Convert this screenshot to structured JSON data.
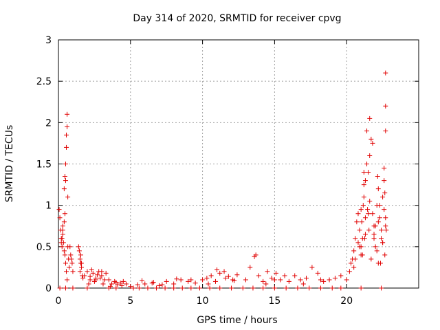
{
  "chart_data": {
    "type": "scatter",
    "title": "Day 314 of 2020, SRMTID for receiver cpvg",
    "xlabel": "GPS time / hours",
    "ylabel": "SRMTID / TECUs",
    "xlim": [
      0,
      25
    ],
    "ylim": [
      0,
      3
    ],
    "xticks": [
      "0",
      "5",
      "10",
      "15",
      "20"
    ],
    "yticks": [
      "0",
      "0.5",
      "1",
      "1.5",
      "2",
      "2.5",
      "3"
    ],
    "xtick_values": [
      0,
      5,
      10,
      15,
      20
    ],
    "ytick_values": [
      0,
      0.5,
      1,
      1.5,
      2,
      2.5,
      3
    ],
    "grid": true,
    "marker": "+",
    "series": [
      {
        "name": "SRMTID",
        "color": "#e00000",
        "x": [
          0.05,
          0.1,
          0.15,
          0.2,
          0.25,
          0.3,
          0.35,
          0.4,
          0.45,
          0.5,
          0.55,
          0.6,
          0.65,
          0.7,
          0.75,
          0.8,
          0.85,
          0.9,
          0.95,
          1.0,
          0.3,
          0.4,
          0.45,
          0.5,
          0.55,
          0.55,
          0.6,
          0.6,
          0.65,
          0.5,
          0.45,
          0.4,
          0.3,
          0.25,
          0.2,
          1.4,
          1.45,
          1.5,
          1.55,
          1.6,
          1.65,
          1.7,
          1.5,
          1.55,
          1.6,
          1.8,
          2.0,
          2.2,
          2.4,
          2.6,
          2.8,
          3.0,
          3.2,
          2.1,
          2.3,
          2.5,
          2.7,
          2.9,
          3.1,
          3.3,
          2.2,
          2.6,
          3.0,
          3.5,
          3.7,
          3.9,
          4.1,
          4.3,
          4.5,
          4.7,
          3.6,
          4.0,
          4.4,
          5.0,
          5.5,
          6.0,
          6.5,
          7.0,
          7.5,
          8.0,
          8.5,
          9.0,
          9.5,
          5.8,
          6.6,
          7.2,
          8.2,
          9.2,
          10.0,
          10.3,
          10.6,
          10.9,
          11.2,
          11.5,
          11.8,
          12.1,
          12.4,
          10.4,
          11.0,
          11.6,
          12.2,
          13.0,
          13.3,
          13.6,
          13.7,
          13.9,
          14.2,
          14.5,
          14.8,
          15.1,
          15.4,
          15.7,
          14.4,
          15.0,
          16.0,
          16.4,
          16.8,
          17.2,
          17.6,
          18.0,
          18.4,
          18.8,
          19.2,
          19.6,
          17.0,
          18.2,
          20.0,
          20.2,
          20.3,
          20.4,
          20.5,
          20.6,
          20.7,
          20.8,
          20.9,
          21.0,
          21.1,
          21.2,
          21.3,
          21.4,
          21.5,
          21.6,
          21.7,
          21.8,
          21.9,
          22.0,
          22.1,
          22.2,
          22.3,
          22.4,
          22.5,
          22.6,
          22.7,
          20.5,
          20.8,
          21.0,
          21.2,
          21.4,
          21.6,
          21.8,
          22.0,
          22.2,
          22.4,
          22.6,
          22.7,
          21.0,
          21.3,
          21.5,
          21.7,
          21.9,
          22.1,
          22.3,
          22.5,
          22.65,
          22.7,
          21.05,
          21.15,
          21.2,
          21.25,
          21.45,
          21.55,
          22.15,
          22.35,
          22.6,
          22.65,
          22.7,
          22.75,
          20.6,
          20.9,
          21.1,
          21.3,
          21.6,
          21.9,
          22.2,
          22.5,
          22.7
        ],
        "y": [
          0.95,
          0.85,
          0.7,
          0.6,
          0.5,
          0.65,
          0.55,
          0.45,
          0.4,
          0.3,
          0.2,
          0.1,
          0.5,
          0.35,
          0.25,
          0.5,
          0.4,
          0.35,
          0.3,
          0.2,
          0.75,
          1.2,
          1.35,
          1.5,
          1.7,
          1.85,
          1.95,
          2.1,
          1.1,
          1.3,
          0.9,
          0.8,
          0.7,
          0.6,
          0.55,
          0.5,
          0.45,
          0.35,
          0.3,
          0.25,
          0.15,
          0.12,
          0.2,
          0.4,
          0.3,
          0.15,
          0.2,
          0.1,
          0.18,
          0.12,
          0.2,
          0.15,
          0.1,
          0.05,
          0.22,
          0.08,
          0.16,
          0.12,
          0.05,
          0.18,
          0.14,
          0.1,
          0.2,
          0.1,
          0.05,
          0.08,
          0.04,
          0.06,
          0.08,
          0.05,
          0.02,
          0.07,
          0.03,
          0.02,
          0.04,
          0.05,
          0.06,
          0.03,
          0.08,
          0.05,
          0.1,
          0.08,
          0.06,
          0.09,
          0.07,
          0.04,
          0.11,
          0.1,
          0.1,
          0.12,
          0.15,
          0.08,
          0.18,
          0.2,
          0.14,
          0.1,
          0.16,
          0.05,
          0.22,
          0.12,
          0.09,
          0.1,
          0.25,
          0.38,
          0.4,
          0.15,
          0.08,
          0.2,
          0.12,
          0.18,
          0.1,
          0.15,
          0.05,
          0.1,
          0.08,
          0.15,
          0.1,
          0.12,
          0.25,
          0.18,
          0.08,
          0.1,
          0.12,
          0.15,
          0.05,
          0.1,
          0.1,
          0.2,
          0.3,
          0.35,
          0.45,
          0.6,
          0.8,
          0.9,
          0.7,
          0.5,
          0.4,
          1.1,
          1.3,
          1.5,
          1.4,
          1.6,
          1.8,
          0.9,
          0.6,
          0.75,
          1.0,
          1.2,
          0.85,
          0.7,
          1.1,
          1.3,
          2.6,
          0.25,
          0.55,
          0.95,
          1.4,
          1.9,
          2.05,
          1.75,
          0.5,
          0.8,
          0.6,
          1.45,
          1.9,
          0.4,
          0.65,
          0.9,
          0.35,
          0.75,
          0.45,
          1.0,
          0.55,
          0.4,
          2.2,
          0.8,
          1.0,
          1.25,
          0.6,
          0.95,
          0.7,
          1.35,
          0.3,
          0.95,
          1.15,
          0.85,
          0.7,
          0.35,
          0.5,
          0.6,
          0.85,
          1.05,
          0.65,
          0.3,
          0.55,
          0.75
        ]
      }
    ],
    "zero_values_x_note": "",
    "zero_row_x": [
      0.1,
      0.5,
      1.0,
      2.0,
      3.5,
      4.0,
      5.2,
      5.6,
      6.2,
      6.8,
      7.4,
      8.0,
      8.6,
      9.2,
      9.8,
      10.5,
      11.2,
      12.0,
      12.8,
      13.5,
      14.2,
      15.0,
      15.8,
      16.6,
      17.4,
      18.2,
      19.0,
      19.6,
      21.0,
      22.4
    ]
  }
}
